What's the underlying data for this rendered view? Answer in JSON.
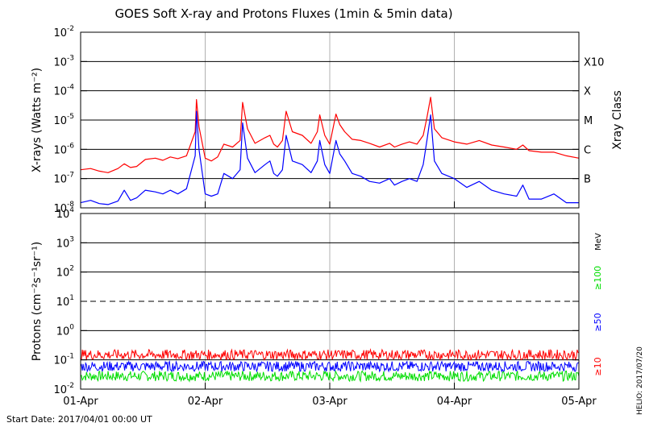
{
  "chart_data": [
    {
      "type": "line",
      "title": "GOES Soft X-ray and Protons Fluxes   (1min & 5min data)",
      "ylabel": "X-rays (Watts m⁻²)",
      "yscale": "log",
      "ylim": [
        1e-08,
        0.01
      ],
      "y_ticks": [
        {
          "base": "10",
          "exp": "-8"
        },
        {
          "base": "10",
          "exp": "-7"
        },
        {
          "base": "10",
          "exp": "-6"
        },
        {
          "base": "10",
          "exp": "-5"
        },
        {
          "base": "10",
          "exp": "-4"
        },
        {
          "base": "10",
          "exp": "-3"
        },
        {
          "base": "10",
          "exp": "-2"
        }
      ],
      "right_axis_label": "Xray Class",
      "right_ticks": [
        {
          "label": "B",
          "value": 1e-07
        },
        {
          "label": "C",
          "value": 1e-06
        },
        {
          "label": "M",
          "value": 1e-05
        },
        {
          "label": "X",
          "value": 0.0001
        },
        {
          "label": "X10",
          "value": 0.001
        }
      ],
      "grid": true,
      "x_range_days": [
        0,
        4
      ],
      "series": [
        {
          "color": "#ff0000",
          "points": [
            [
              0.0,
              2e-07
            ],
            [
              0.08,
              2.2e-07
            ],
            [
              0.15,
              1.8e-07
            ],
            [
              0.22,
              1.6e-07
            ],
            [
              0.3,
              2.2e-07
            ],
            [
              0.35,
              3.2e-07
            ],
            [
              0.4,
              2.4e-07
            ],
            [
              0.45,
              2.6e-07
            ],
            [
              0.52,
              4.5e-07
            ],
            [
              0.6,
              5e-07
            ],
            [
              0.66,
              4.2e-07
            ],
            [
              0.72,
              5.5e-07
            ],
            [
              0.78,
              4.8e-07
            ],
            [
              0.85,
              6e-07
            ],
            [
              0.92,
              4e-06
            ],
            [
              0.93,
              5e-05
            ],
            [
              0.95,
              6e-06
            ],
            [
              1.0,
              5e-07
            ],
            [
              1.05,
              4e-07
            ],
            [
              1.1,
              5.5e-07
            ],
            [
              1.15,
              1.5e-06
            ],
            [
              1.22,
              1.2e-06
            ],
            [
              1.28,
              2e-06
            ],
            [
              1.3,
              4e-05
            ],
            [
              1.34,
              5e-06
            ],
            [
              1.4,
              1.6e-06
            ],
            [
              1.48,
              2.5e-06
            ],
            [
              1.52,
              3e-06
            ],
            [
              1.55,
              1.5e-06
            ],
            [
              1.58,
              1.2e-06
            ],
            [
              1.62,
              2e-06
            ],
            [
              1.65,
              2e-05
            ],
            [
              1.7,
              4e-06
            ],
            [
              1.78,
              3e-06
            ],
            [
              1.85,
              1.6e-06
            ],
            [
              1.9,
              4e-06
            ],
            [
              1.92,
              1.5e-05
            ],
            [
              1.96,
              3e-06
            ],
            [
              2.0,
              1.5e-06
            ],
            [
              2.05,
              1.6e-05
            ],
            [
              2.08,
              7e-06
            ],
            [
              2.12,
              4e-06
            ],
            [
              2.18,
              2.2e-06
            ],
            [
              2.25,
              2e-06
            ],
            [
              2.32,
              1.6e-06
            ],
            [
              2.4,
              1.2e-06
            ],
            [
              2.48,
              1.6e-06
            ],
            [
              2.52,
              1.2e-06
            ],
            [
              2.58,
              1.5e-06
            ],
            [
              2.64,
              1.8e-06
            ],
            [
              2.7,
              1.5e-06
            ],
            [
              2.75,
              3e-06
            ],
            [
              2.78,
              1.2e-05
            ],
            [
              2.81,
              6e-05
            ],
            [
              2.84,
              5e-06
            ],
            [
              2.9,
              2.5e-06
            ],
            [
              3.0,
              1.8e-06
            ],
            [
              3.1,
              1.5e-06
            ],
            [
              3.2,
              2e-06
            ],
            [
              3.3,
              1.4e-06
            ],
            [
              3.4,
              1.2e-06
            ],
            [
              3.5,
              1e-06
            ],
            [
              3.55,
              1.4e-06
            ],
            [
              3.6,
              9e-07
            ],
            [
              3.7,
              8e-07
            ],
            [
              3.8,
              8e-07
            ],
            [
              3.9,
              6e-07
            ],
            [
              4.0,
              5e-07
            ]
          ]
        },
        {
          "color": "#0000ff",
          "points": [
            [
              0.0,
              1.5e-08
            ],
            [
              0.08,
              1.8e-08
            ],
            [
              0.15,
              1.4e-08
            ],
            [
              0.22,
              1.3e-08
            ],
            [
              0.3,
              1.7e-08
            ],
            [
              0.35,
              4e-08
            ],
            [
              0.4,
              1.8e-08
            ],
            [
              0.45,
              2.2e-08
            ],
            [
              0.52,
              4e-08
            ],
            [
              0.6,
              3.5e-08
            ],
            [
              0.66,
              3e-08
            ],
            [
              0.72,
              4e-08
            ],
            [
              0.78,
              3e-08
            ],
            [
              0.85,
              4.5e-08
            ],
            [
              0.92,
              6e-07
            ],
            [
              0.93,
              2e-05
            ],
            [
              0.95,
              1e-06
            ],
            [
              1.0,
              3e-08
            ],
            [
              1.05,
              2.5e-08
            ],
            [
              1.1,
              3e-08
            ],
            [
              1.15,
              1.5e-07
            ],
            [
              1.22,
              1e-07
            ],
            [
              1.28,
              2e-07
            ],
            [
              1.3,
              8e-06
            ],
            [
              1.34,
              5e-07
            ],
            [
              1.4,
              1.6e-07
            ],
            [
              1.48,
              3e-07
            ],
            [
              1.52,
              4e-07
            ],
            [
              1.55,
              1.5e-07
            ],
            [
              1.58,
              1.2e-07
            ],
            [
              1.62,
              2e-07
            ],
            [
              1.65,
              3e-06
            ],
            [
              1.7,
              4e-07
            ],
            [
              1.78,
              3e-07
            ],
            [
              1.85,
              1.6e-07
            ],
            [
              1.9,
              4e-07
            ],
            [
              1.92,
              2e-06
            ],
            [
              1.96,
              3e-07
            ],
            [
              2.0,
              1.5e-07
            ],
            [
              2.05,
              2e-06
            ],
            [
              2.08,
              7e-07
            ],
            [
              2.12,
              4e-07
            ],
            [
              2.18,
              1.5e-07
            ],
            [
              2.25,
              1.2e-07
            ],
            [
              2.32,
              8e-08
            ],
            [
              2.4,
              7e-08
            ],
            [
              2.48,
              1e-07
            ],
            [
              2.52,
              6e-08
            ],
            [
              2.58,
              8e-08
            ],
            [
              2.64,
              1e-07
            ],
            [
              2.7,
              8e-08
            ],
            [
              2.75,
              3e-07
            ],
            [
              2.78,
              2e-06
            ],
            [
              2.81,
              1.5e-05
            ],
            [
              2.84,
              4e-07
            ],
            [
              2.9,
              1.5e-07
            ],
            [
              3.0,
              1e-07
            ],
            [
              3.1,
              5e-08
            ],
            [
              3.2,
              8e-08
            ],
            [
              3.3,
              4e-08
            ],
            [
              3.4,
              3e-08
            ],
            [
              3.5,
              2.5e-08
            ],
            [
              3.55,
              6e-08
            ],
            [
              3.6,
              2e-08
            ],
            [
              3.7,
              2e-08
            ],
            [
              3.8,
              3e-08
            ],
            [
              3.9,
              1.5e-08
            ],
            [
              4.0,
              1.5e-08
            ]
          ]
        }
      ]
    },
    {
      "type": "line",
      "ylabel": "Protons (cm⁻²s⁻¹sr⁻¹)",
      "yscale": "log",
      "ylim": [
        0.01,
        10000
      ],
      "y_ticks": [
        {
          "base": "10",
          "exp": "-2"
        },
        {
          "base": "10",
          "exp": "-1"
        },
        {
          "base": "10",
          "exp": "0"
        },
        {
          "base": "10",
          "exp": "1"
        },
        {
          "base": "10",
          "exp": "2"
        },
        {
          "base": "10",
          "exp": "3"
        },
        {
          "base": "10",
          "exp": "4"
        }
      ],
      "x_ticks": [
        "01-Apr",
        "02-Apr",
        "03-Apr",
        "04-Apr",
        "05-Apr"
      ],
      "threshold_line": 10,
      "grid": true,
      "unit_label": "MeV",
      "series": [
        {
          "name": "≥100",
          "color": "#00dd00",
          "level": 0.028
        },
        {
          "name": "≥50",
          "color": "#0000ff",
          "level": 0.06
        },
        {
          "name": "≥10",
          "color": "#ff0000",
          "level": 0.15
        }
      ]
    }
  ],
  "footer": {
    "start_date": "Start Date: 2017/04/01 00:00 UT",
    "credit": "HELIO: 2017/07/20"
  }
}
